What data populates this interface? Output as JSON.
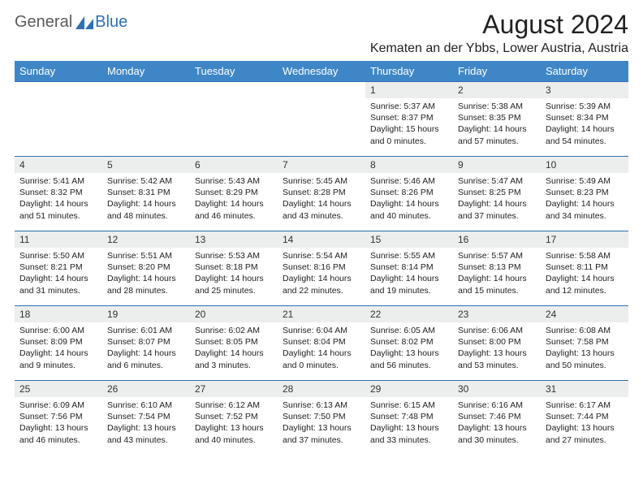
{
  "logo": {
    "text1": "General",
    "text2": "Blue"
  },
  "title": "August 2024",
  "location": "Kematen an der Ybbs, Lower Austria, Austria",
  "colors": {
    "header_bg": "#3f86c7",
    "header_text": "#ffffff",
    "row_divider": "#2f6fb3",
    "daynum_bg": "#eceded",
    "body_text": "#222222",
    "logo_blue": "#2f6fb3",
    "logo_gray": "#5b5b5b",
    "page_bg": "#ffffff"
  },
  "weekdays": [
    "Sunday",
    "Monday",
    "Tuesday",
    "Wednesday",
    "Thursday",
    "Friday",
    "Saturday"
  ],
  "weeks": [
    [
      null,
      null,
      null,
      null,
      {
        "n": "1",
        "sr": "5:37 AM",
        "ss": "8:37 PM",
        "dl": "15 hours and 0 minutes."
      },
      {
        "n": "2",
        "sr": "5:38 AM",
        "ss": "8:35 PM",
        "dl": "14 hours and 57 minutes."
      },
      {
        "n": "3",
        "sr": "5:39 AM",
        "ss": "8:34 PM",
        "dl": "14 hours and 54 minutes."
      }
    ],
    [
      {
        "n": "4",
        "sr": "5:41 AM",
        "ss": "8:32 PM",
        "dl": "14 hours and 51 minutes."
      },
      {
        "n": "5",
        "sr": "5:42 AM",
        "ss": "8:31 PM",
        "dl": "14 hours and 48 minutes."
      },
      {
        "n": "6",
        "sr": "5:43 AM",
        "ss": "8:29 PM",
        "dl": "14 hours and 46 minutes."
      },
      {
        "n": "7",
        "sr": "5:45 AM",
        "ss": "8:28 PM",
        "dl": "14 hours and 43 minutes."
      },
      {
        "n": "8",
        "sr": "5:46 AM",
        "ss": "8:26 PM",
        "dl": "14 hours and 40 minutes."
      },
      {
        "n": "9",
        "sr": "5:47 AM",
        "ss": "8:25 PM",
        "dl": "14 hours and 37 minutes."
      },
      {
        "n": "10",
        "sr": "5:49 AM",
        "ss": "8:23 PM",
        "dl": "14 hours and 34 minutes."
      }
    ],
    [
      {
        "n": "11",
        "sr": "5:50 AM",
        "ss": "8:21 PM",
        "dl": "14 hours and 31 minutes."
      },
      {
        "n": "12",
        "sr": "5:51 AM",
        "ss": "8:20 PM",
        "dl": "14 hours and 28 minutes."
      },
      {
        "n": "13",
        "sr": "5:53 AM",
        "ss": "8:18 PM",
        "dl": "14 hours and 25 minutes."
      },
      {
        "n": "14",
        "sr": "5:54 AM",
        "ss": "8:16 PM",
        "dl": "14 hours and 22 minutes."
      },
      {
        "n": "15",
        "sr": "5:55 AM",
        "ss": "8:14 PM",
        "dl": "14 hours and 19 minutes."
      },
      {
        "n": "16",
        "sr": "5:57 AM",
        "ss": "8:13 PM",
        "dl": "14 hours and 15 minutes."
      },
      {
        "n": "17",
        "sr": "5:58 AM",
        "ss": "8:11 PM",
        "dl": "14 hours and 12 minutes."
      }
    ],
    [
      {
        "n": "18",
        "sr": "6:00 AM",
        "ss": "8:09 PM",
        "dl": "14 hours and 9 minutes."
      },
      {
        "n": "19",
        "sr": "6:01 AM",
        "ss": "8:07 PM",
        "dl": "14 hours and 6 minutes."
      },
      {
        "n": "20",
        "sr": "6:02 AM",
        "ss": "8:05 PM",
        "dl": "14 hours and 3 minutes."
      },
      {
        "n": "21",
        "sr": "6:04 AM",
        "ss": "8:04 PM",
        "dl": "14 hours and 0 minutes."
      },
      {
        "n": "22",
        "sr": "6:05 AM",
        "ss": "8:02 PM",
        "dl": "13 hours and 56 minutes."
      },
      {
        "n": "23",
        "sr": "6:06 AM",
        "ss": "8:00 PM",
        "dl": "13 hours and 53 minutes."
      },
      {
        "n": "24",
        "sr": "6:08 AM",
        "ss": "7:58 PM",
        "dl": "13 hours and 50 minutes."
      }
    ],
    [
      {
        "n": "25",
        "sr": "6:09 AM",
        "ss": "7:56 PM",
        "dl": "13 hours and 46 minutes."
      },
      {
        "n": "26",
        "sr": "6:10 AM",
        "ss": "7:54 PM",
        "dl": "13 hours and 43 minutes."
      },
      {
        "n": "27",
        "sr": "6:12 AM",
        "ss": "7:52 PM",
        "dl": "13 hours and 40 minutes."
      },
      {
        "n": "28",
        "sr": "6:13 AM",
        "ss": "7:50 PM",
        "dl": "13 hours and 37 minutes."
      },
      {
        "n": "29",
        "sr": "6:15 AM",
        "ss": "7:48 PM",
        "dl": "13 hours and 33 minutes."
      },
      {
        "n": "30",
        "sr": "6:16 AM",
        "ss": "7:46 PM",
        "dl": "13 hours and 30 minutes."
      },
      {
        "n": "31",
        "sr": "6:17 AM",
        "ss": "7:44 PM",
        "dl": "13 hours and 27 minutes."
      }
    ]
  ],
  "labels": {
    "sunrise": "Sunrise:",
    "sunset": "Sunset:",
    "daylight": "Daylight:"
  }
}
